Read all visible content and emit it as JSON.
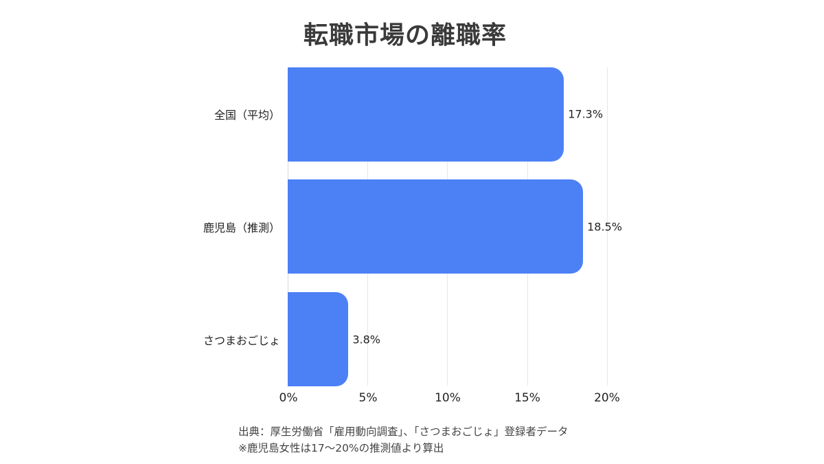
{
  "title": "転職市場の離職率",
  "colors": {
    "bar": "#4c80f5",
    "grid": "#e6e6e6",
    "text": "#222222"
  },
  "chart_data": {
    "type": "bar",
    "orientation": "horizontal",
    "title": "転職市場の離職率",
    "categories": [
      "全国（平均）",
      "鹿児島（推測）",
      "さつまおごじょ"
    ],
    "values": [
      17.3,
      18.5,
      3.8
    ],
    "value_labels": [
      "17.3%",
      "18.5%",
      "3.8%"
    ],
    "xlabel": "",
    "ylabel": "",
    "xlim": [
      0,
      20
    ],
    "xticks": [
      "0%",
      "5%",
      "10%",
      "15%",
      "20%"
    ],
    "grid": true,
    "legend": null
  },
  "footnotes": [
    "出典：厚生労働省「雇用動向調査」、「さつまおごじょ」登録者データ",
    "※鹿児島女性は17〜20%の推測値より算出"
  ]
}
